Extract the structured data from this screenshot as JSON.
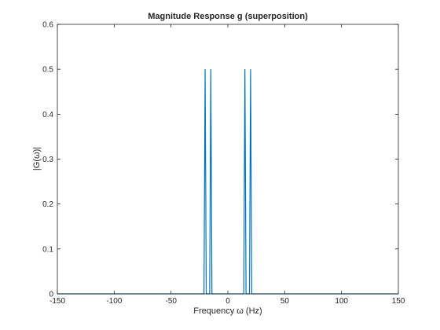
{
  "chart_data": {
    "type": "line",
    "title": "Magnitude Response g (superposition)",
    "xlabel": "Frequency ω (Hz)",
    "ylabel": "|G(ω)|",
    "xlim": [
      -150,
      150
    ],
    "ylim": [
      0,
      0.6
    ],
    "xticks": [
      -150,
      -100,
      -50,
      0,
      50,
      100,
      150
    ],
    "yticks": [
      0,
      0.1,
      0.2,
      0.3,
      0.4,
      0.5,
      0.6
    ],
    "grid": false,
    "line_color": "#0072BD",
    "series": [
      {
        "x": [
          -150,
          -21,
          -20,
          -19,
          -16,
          -15,
          -14,
          14,
          15,
          16,
          19,
          20,
          21,
          150
        ],
        "y": [
          0,
          0,
          0.5,
          0,
          0,
          0.5,
          0,
          0,
          0.5,
          0,
          0,
          0.5,
          0,
          0
        ]
      }
    ]
  }
}
